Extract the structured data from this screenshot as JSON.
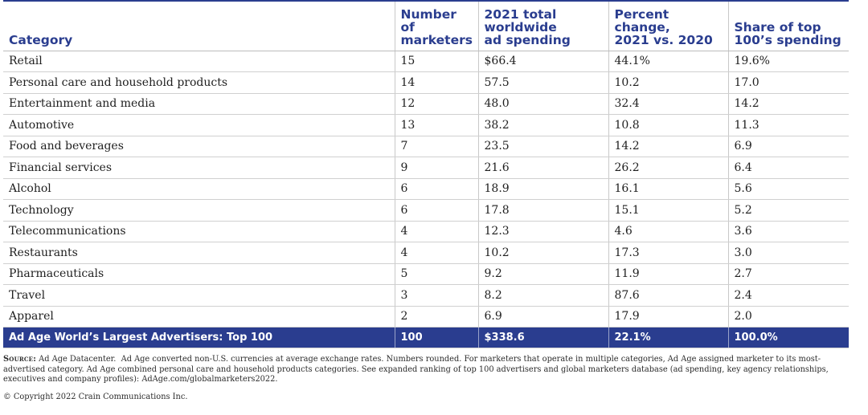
{
  "table": {
    "headers": {
      "category": "Category",
      "num_marketers": [
        "Number of",
        "marketers"
      ],
      "spending": [
        "2021 total",
        "worldwide",
        "ad spending"
      ],
      "pct_change": [
        "Percent change,",
        "2021 vs. 2020"
      ],
      "share": [
        "Share of top",
        "100’s spending"
      ]
    },
    "rows": [
      {
        "category": "Retail",
        "marketers": "15",
        "spending": "$66.4",
        "change": "44.1%",
        "share": "19.6%"
      },
      {
        "category": "Personal care and household products",
        "marketers": "14",
        "spending": "57.5",
        "change": "10.2",
        "share": "17.0"
      },
      {
        "category": "Entertainment and media",
        "marketers": "12",
        "spending": "48.0",
        "change": "32.4",
        "share": "14.2"
      },
      {
        "category": "Automotive",
        "marketers": "13",
        "spending": "38.2",
        "change": "10.8",
        "share": "11.3"
      },
      {
        "category": "Food and beverages",
        "marketers": "7",
        "spending": "23.5",
        "change": "14.2",
        "share": "6.9"
      },
      {
        "category": "Financial services",
        "marketers": "9",
        "spending": "21.6",
        "change": "26.2",
        "share": "6.4"
      },
      {
        "category": "Alcohol",
        "marketers": "6",
        "spending": "18.9",
        "change": "16.1",
        "share": "5.6"
      },
      {
        "category": "Technology",
        "marketers": "6",
        "spending": "17.8",
        "change": "15.1",
        "share": "5.2"
      },
      {
        "category": "Telecommunications",
        "marketers": "4",
        "spending": "12.3",
        "change": "4.6",
        "share": "3.6"
      },
      {
        "category": "Restaurants",
        "marketers": "4",
        "spending": "10.2",
        "change": "17.3",
        "share": "3.0"
      },
      {
        "category": "Pharmaceuticals",
        "marketers": "5",
        "spending": "9.2",
        "change": "11.9",
        "share": "2.7"
      },
      {
        "category": "Travel",
        "marketers": "3",
        "spending": "8.2",
        "change": "87.6",
        "share": "2.4"
      },
      {
        "category": "Apparel",
        "marketers": "2",
        "spending": "6.9",
        "change": "17.9",
        "share": "2.0"
      }
    ],
    "total": {
      "category": "Ad Age World’s Largest Advertisers: Top 100",
      "marketers": "100",
      "spending": "$338.6",
      "change": "22.1%",
      "share": "100.0%"
    }
  },
  "footer": {
    "source_label": "Source:",
    "source_text": "Ad Age Datacenter.  Ad Age converted non-U.S. currencies at average exchange rates. Numbers rounded. For marketers that operate in multiple categories, Ad Age assigned marketer to its most-advertised category. Ad Age combined personal care and household products categories. See expanded ranking of top 100 advertisers and global marketers database (ad spending, key agency relationships, executives and company profiles): AdAge.com/globalmarketers2022.",
    "copyright": "© Copyright 2022 Crain Communications Inc."
  },
  "colors": {
    "accent": "#2a3d8f",
    "text": "#1f1f1f",
    "grid": "#d0d0d0"
  }
}
